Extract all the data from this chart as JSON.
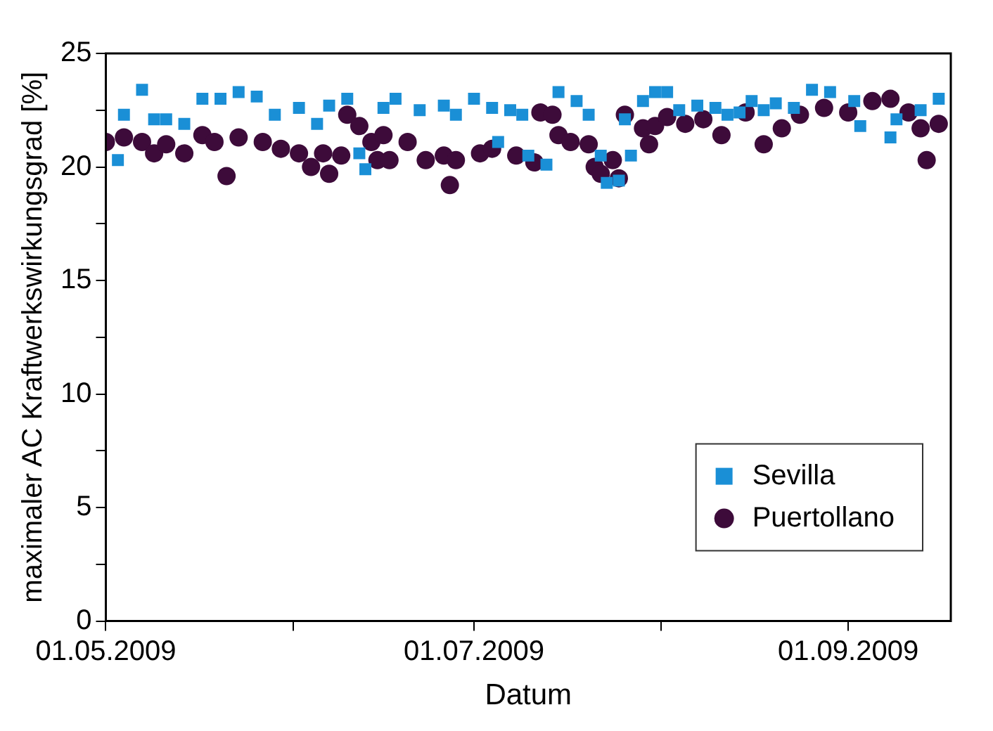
{
  "chart_data": {
    "type": "scatter",
    "xlabel": "Datum",
    "ylabel": "maximaler AC Kraftwerkswirkungsgrad [%]",
    "xlim": [
      "2009-05-01",
      "2009-09-18"
    ],
    "xticks": [
      {
        "value": "2009-05-01",
        "label": "01.05.2009"
      },
      {
        "value": "2009-06-01",
        "label": null
      },
      {
        "value": "2009-07-01",
        "label": "01.07.2009"
      },
      {
        "value": "2009-08-01",
        "label": null
      },
      {
        "value": "2009-09-01",
        "label": "01.09.2009"
      }
    ],
    "ylim": [
      0,
      25
    ],
    "yticks": [
      0,
      {
        "value": 2.5,
        "label": null
      },
      5,
      {
        "value": 7.5,
        "label": null
      },
      10,
      {
        "value": 12.5,
        "label": null
      },
      15,
      {
        "value": 17.5,
        "label": null
      },
      20,
      {
        "value": 22.5,
        "label": null
      },
      25
    ],
    "grid": false,
    "legend": "bottom right",
    "series": [
      {
        "name": "Sevilla",
        "color": "#1a8fd6",
        "marker": "square",
        "x": [
          "2009-05-03",
          "2009-05-04",
          "2009-05-07",
          "2009-05-09",
          "2009-05-11",
          "2009-05-14",
          "2009-05-17",
          "2009-05-20",
          "2009-05-23",
          "2009-05-26",
          "2009-05-29",
          "2009-06-02",
          "2009-06-05",
          "2009-06-07",
          "2009-06-10",
          "2009-06-12",
          "2009-06-13",
          "2009-06-16",
          "2009-06-18",
          "2009-06-22",
          "2009-06-26",
          "2009-06-28",
          "2009-07-01",
          "2009-07-04",
          "2009-07-05",
          "2009-07-07",
          "2009-07-09",
          "2009-07-10",
          "2009-07-13",
          "2009-07-15",
          "2009-07-18",
          "2009-07-20",
          "2009-07-22",
          "2009-07-23",
          "2009-07-25",
          "2009-07-26",
          "2009-07-27",
          "2009-07-29",
          "2009-07-31",
          "2009-08-02",
          "2009-08-04",
          "2009-08-07",
          "2009-08-10",
          "2009-08-12",
          "2009-08-14",
          "2009-08-16",
          "2009-08-18",
          "2009-08-20",
          "2009-08-23",
          "2009-08-26",
          "2009-08-29",
          "2009-09-02",
          "2009-09-03",
          "2009-09-08",
          "2009-09-09",
          "2009-09-13",
          "2009-09-16"
        ],
        "values": [
          20.3,
          22.3,
          23.4,
          22.1,
          22.1,
          21.9,
          23.0,
          23.0,
          23.3,
          23.1,
          22.3,
          22.6,
          21.9,
          22.7,
          23.0,
          20.6,
          19.9,
          22.6,
          23.0,
          22.5,
          22.7,
          22.3,
          23.0,
          22.6,
          21.1,
          22.5,
          22.3,
          20.5,
          20.1,
          23.3,
          22.9,
          22.3,
          20.5,
          19.3,
          19.4,
          22.1,
          20.5,
          22.9,
          23.3,
          23.3,
          22.5,
          22.7,
          22.6,
          22.3,
          22.4,
          22.9,
          22.5,
          22.8,
          22.6,
          23.4,
          23.3,
          22.9,
          21.8,
          21.3,
          22.1,
          22.5,
          23.0
        ]
      },
      {
        "name": "Puertollano",
        "color": "#3d0b3a",
        "marker": "circle",
        "x": [
          "2009-05-01",
          "2009-05-04",
          "2009-05-07",
          "2009-05-09",
          "2009-05-11",
          "2009-05-14",
          "2009-05-17",
          "2009-05-19",
          "2009-05-21",
          "2009-05-23",
          "2009-05-27",
          "2009-05-30",
          "2009-06-02",
          "2009-06-04",
          "2009-06-06",
          "2009-06-07",
          "2009-06-09",
          "2009-06-10",
          "2009-06-12",
          "2009-06-14",
          "2009-06-15",
          "2009-06-16",
          "2009-06-17",
          "2009-06-20",
          "2009-06-23",
          "2009-06-26",
          "2009-06-27",
          "2009-06-28",
          "2009-07-02",
          "2009-07-04",
          "2009-07-08",
          "2009-07-11",
          "2009-07-12",
          "2009-07-14",
          "2009-07-15",
          "2009-07-17",
          "2009-07-20",
          "2009-07-21",
          "2009-07-22",
          "2009-07-24",
          "2009-07-25",
          "2009-07-26",
          "2009-07-29",
          "2009-07-30",
          "2009-07-31",
          "2009-08-02",
          "2009-08-05",
          "2009-08-08",
          "2009-08-11",
          "2009-08-15",
          "2009-08-18",
          "2009-08-21",
          "2009-08-24",
          "2009-08-28",
          "2009-09-01",
          "2009-09-05",
          "2009-09-08",
          "2009-09-11",
          "2009-09-13",
          "2009-09-14",
          "2009-09-16"
        ],
        "values": [
          21.1,
          21.3,
          21.1,
          20.6,
          21.0,
          20.6,
          21.4,
          21.1,
          19.6,
          21.3,
          21.1,
          20.8,
          20.6,
          20.0,
          20.6,
          19.7,
          20.5,
          22.3,
          21.8,
          21.1,
          20.3,
          21.4,
          20.3,
          21.1,
          20.3,
          20.5,
          19.2,
          20.3,
          20.6,
          20.8,
          20.5,
          20.2,
          22.4,
          22.3,
          21.4,
          21.1,
          21.0,
          20.0,
          19.7,
          20.3,
          19.5,
          22.3,
          21.7,
          21.0,
          21.8,
          22.2,
          21.9,
          22.1,
          21.4,
          22.4,
          21.0,
          21.7,
          22.3,
          22.6,
          22.4,
          22.9,
          23.0,
          22.4,
          21.7,
          20.3,
          21.9
        ]
      }
    ]
  }
}
